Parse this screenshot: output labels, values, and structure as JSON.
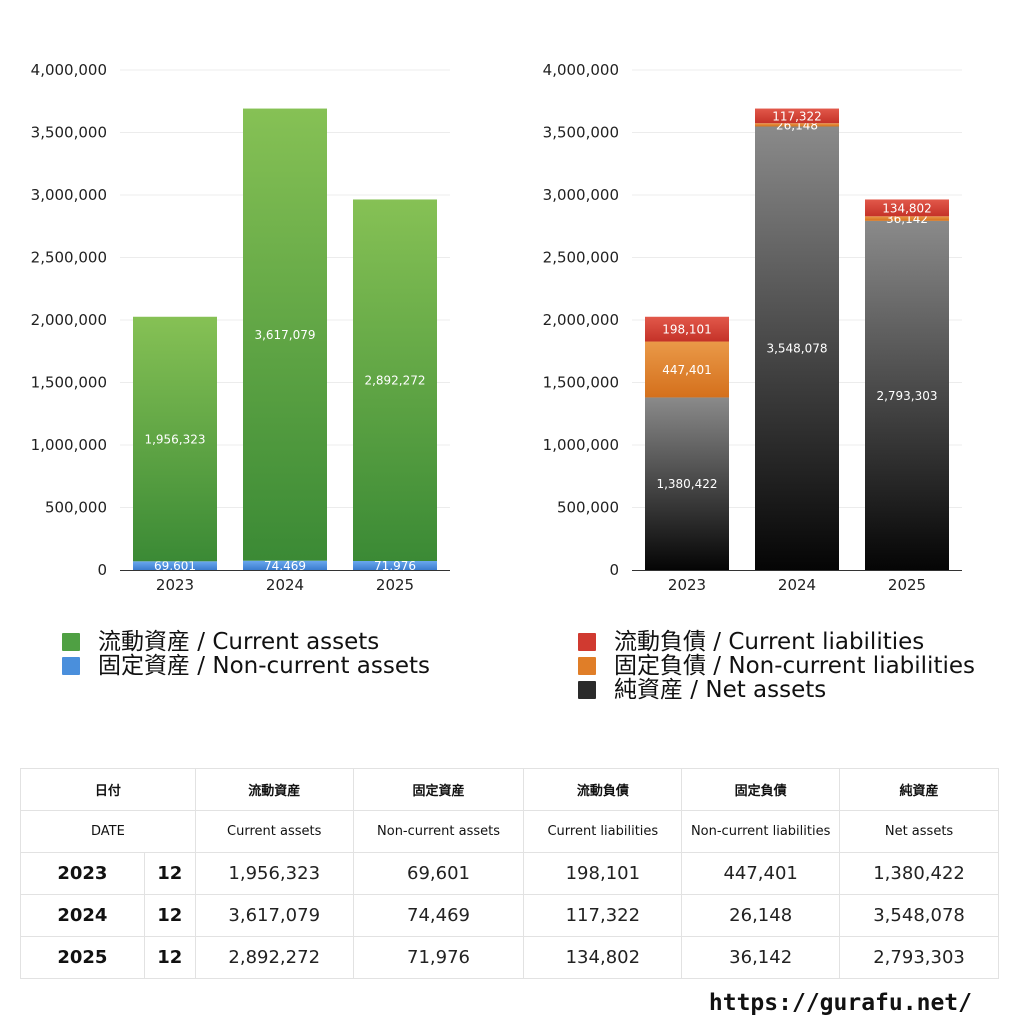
{
  "chart_data": [
    {
      "type": "bar",
      "stacked": true,
      "categories": [
        "2023",
        "2024",
        "2025"
      ],
      "ylim": [
        0,
        4000000
      ],
      "yticks": [
        "0",
        "500,000",
        "1,000,000",
        "1,500,000",
        "2,000,000",
        "2,500,000",
        "3,000,000",
        "3,500,000",
        "4,000,000"
      ],
      "grid": true,
      "series": [
        {
          "name": "固定資産 / Non-current assets",
          "values": [
            69601,
            74469,
            71976
          ],
          "labels": [
            "69,601",
            "74,469",
            "71,976"
          ],
          "color": "#4a8fdc"
        },
        {
          "name": "流動資産 / Current assets",
          "values": [
            1956323,
            3617079,
            2892272
          ],
          "labels": [
            "1,956,323",
            "3,617,079",
            "2,892,272"
          ],
          "color": "#4fa043"
        }
      ]
    },
    {
      "type": "bar",
      "stacked": true,
      "categories": [
        "2023",
        "2024",
        "2025"
      ],
      "ylim": [
        0,
        4000000
      ],
      "yticks": [
        "0",
        "500,000",
        "1,000,000",
        "1,500,000",
        "2,000,000",
        "2,500,000",
        "3,000,000",
        "3,500,000",
        "4,000,000"
      ],
      "grid": true,
      "series": [
        {
          "name": "純資産 / Net assets",
          "values": [
            1380422,
            3548078,
            2793303
          ],
          "labels": [
            "1,380,422",
            "3,548,078",
            "2,793,303"
          ],
          "color": "#3a3a3a"
        },
        {
          "name": "固定負債 / Non-current liabilities",
          "values": [
            447401,
            26148,
            36142
          ],
          "labels": [
            "447,401",
            "26,148",
            "36,142"
          ],
          "color": "#e07e28"
        },
        {
          "name": "流動負債 / Current liabilities",
          "values": [
            198101,
            117322,
            134802
          ],
          "labels": [
            "198,101",
            "117,322",
            "134,802"
          ],
          "color": "#d03a30"
        }
      ]
    }
  ],
  "legend_left": [
    {
      "label": "流動資産 / Current assets",
      "color": "#4fa043"
    },
    {
      "label": "固定資産 / Non-current assets",
      "color": "#4a8fdc"
    }
  ],
  "legend_right": [
    {
      "label": "流動負債 / Current liabilities",
      "color": "#d03a30"
    },
    {
      "label": "固定負債 / Non-current liabilities",
      "color": "#e07e28"
    },
    {
      "label": "純資産 / Net assets",
      "color": "#2b2b2b"
    }
  ],
  "table": {
    "header_jp": [
      "日付",
      "流動資産",
      "固定資産",
      "流動負債",
      "固定負債",
      "純資産"
    ],
    "header_en": [
      "DATE",
      "Current assets",
      "Non-current assets",
      "Current liabilities",
      "Non-current liabilities",
      "Net assets"
    ],
    "rows": [
      {
        "year": "2023",
        "month": "12",
        "values": [
          "1,956,323",
          "69,601",
          "198,101",
          "447,401",
          "1,380,422"
        ]
      },
      {
        "year": "2024",
        "month": "12",
        "values": [
          "3,617,079",
          "74,469",
          "117,322",
          "26,148",
          "3,548,078"
        ]
      },
      {
        "year": "2025",
        "month": "12",
        "values": [
          "2,892,272",
          "71,976",
          "134,802",
          "36,142",
          "2,793,303"
        ]
      }
    ]
  },
  "footer": "https://gurafu.net/"
}
